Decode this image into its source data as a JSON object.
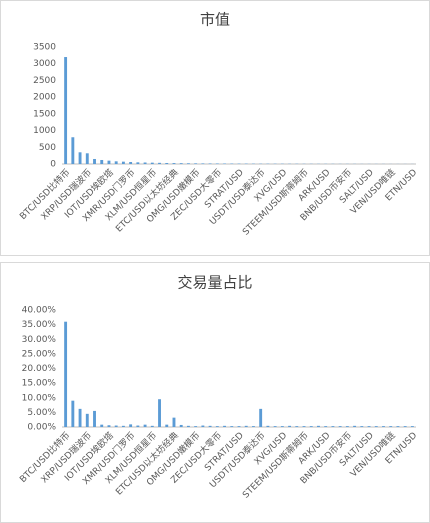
{
  "chart_data": [
    {
      "type": "bar",
      "title": "市值",
      "color": "#5b9bd5",
      "grid": false,
      "categories": [
        "BTC/USD比特币",
        null,
        null,
        "XRP/USD瑞波币",
        null,
        null,
        "IOT/USD埃欧塔",
        null,
        null,
        "XMR/USD门罗币",
        null,
        null,
        "XLM/USD恒星币",
        null,
        null,
        "ETC/USD以太坊经典",
        null,
        null,
        "OMG/USD嫩模币",
        null,
        null,
        "ZEC/USD大零币",
        null,
        null,
        "STRAT/USD",
        null,
        null,
        "USDT/USD泰达币",
        null,
        null,
        "XVG/USD",
        null,
        null,
        "STEEM/USD斯蒂姆币",
        null,
        null,
        "ARK/USD",
        null,
        null,
        "BNB/USD币安币",
        null,
        null,
        "SALT/USD",
        null,
        null,
        "VEN/USD唯链",
        null,
        null,
        "ETN/USD"
      ],
      "values": [
        3200,
        800,
        350,
        320,
        150,
        120,
        100,
        80,
        70,
        60,
        50,
        45,
        40,
        35,
        30,
        28,
        25,
        22,
        20,
        18,
        17,
        16,
        15,
        14,
        13,
        12,
        11,
        10,
        10,
        9,
        9,
        8,
        8,
        7,
        7,
        6,
        6,
        6,
        5,
        5,
        5,
        4,
        4,
        4,
        4,
        3,
        3,
        3,
        3
      ],
      "ylim": [
        0,
        3500
      ],
      "yticks": [
        0,
        500,
        1000,
        1500,
        2000,
        2500,
        3000,
        3500
      ]
    },
    {
      "type": "bar",
      "title": "交易量占比",
      "color": "#5b9bd5",
      "grid": false,
      "categories": [
        "BTC/USD比特币",
        null,
        null,
        "XRP/USD瑞波币",
        null,
        null,
        "IOT/USD埃欧塔",
        null,
        null,
        "XMR/USD门罗币",
        null,
        null,
        "XLM/USD恒星币",
        null,
        null,
        "ETC/USD以太坊经典",
        null,
        null,
        "OMG/USD嫩模币",
        null,
        null,
        "ZEC/USD大零币",
        null,
        null,
        "STRAT/USD",
        null,
        null,
        "USDT/USD泰达币",
        null,
        null,
        "XVG/USD",
        null,
        null,
        "STEEM/USD斯蒂姆币",
        null,
        null,
        "ARK/USD",
        null,
        null,
        "BNB/USD币安币",
        null,
        null,
        "SALT/USD",
        null,
        null,
        "VEN/USD唯链",
        null,
        null,
        "ETN/USD"
      ],
      "values": [
        36,
        9,
        6.2,
        4.5,
        5.5,
        0.8,
        0.6,
        0.5,
        0.4,
        0.9,
        0.5,
        0.8,
        0.4,
        9.5,
        0.8,
        3.2,
        0.7,
        0.4,
        0.3,
        0.5,
        0.4,
        0.3,
        0.4,
        0.3,
        0.3,
        0.4,
        0.3,
        6.2,
        0.4,
        0.3,
        0.3,
        0.4,
        0.3,
        0.3,
        0.3,
        0.4,
        0.3,
        0.3,
        0.3,
        0.3,
        0.4,
        0.3,
        0.3,
        0.3,
        0.3,
        0.3,
        0.3,
        0.3,
        0.3
      ],
      "ylim": [
        0,
        40
      ],
      "yticks": [
        {
          "value": 0,
          "label": "0.00%"
        },
        {
          "value": 5,
          "label": "5.00%"
        },
        {
          "value": 10,
          "label": "10.00%"
        },
        {
          "value": 15,
          "label": "15.00%"
        },
        {
          "value": 20,
          "label": "20.00%"
        },
        {
          "value": 25,
          "label": "25.00%"
        },
        {
          "value": 30,
          "label": "30.00%"
        },
        {
          "value": 35,
          "label": "35.00%"
        },
        {
          "value": 40,
          "label": "40.00%"
        }
      ]
    }
  ]
}
